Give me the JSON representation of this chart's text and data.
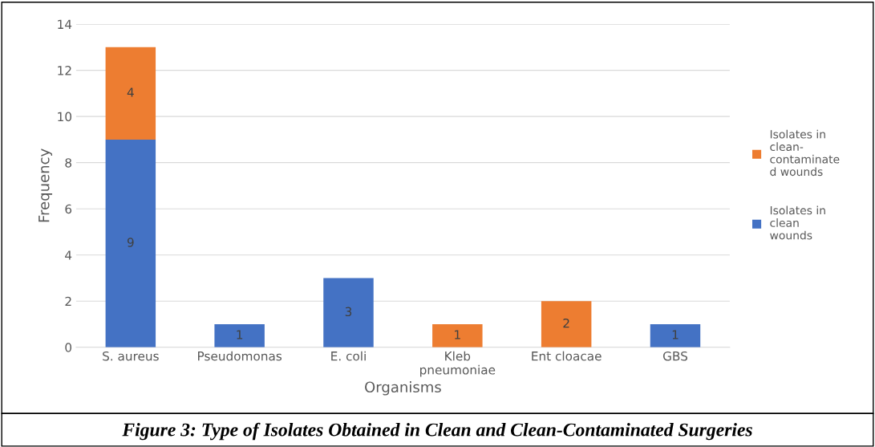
{
  "chart_data": {
    "type": "bar",
    "stacked": true,
    "categories": [
      "S. aureus",
      "Pseudomonas",
      "E. coli",
      "Kleb pneumoniae",
      "Ent cloacae",
      "GBS"
    ],
    "series": [
      {
        "name": "Isolates in clean wounds",
        "color": "#4472c4",
        "values": [
          9,
          1,
          3,
          null,
          null,
          1
        ]
      },
      {
        "name": "Isolates in clean-contaminated wounds",
        "color": "#ed7d31",
        "values": [
          4,
          null,
          null,
          1,
          2,
          null
        ]
      }
    ],
    "xlabel": "Organisms",
    "ylabel": "Frequency",
    "ylim": [
      0,
      14
    ],
    "yticks": [
      0,
      2,
      4,
      6,
      8,
      10,
      12,
      14
    ],
    "grid": "y",
    "legend": "right",
    "data_labels": true,
    "annotations": [
      "Figure 3: Type of Isolates Obtained in Clean and Clean-Contaminated Surgeries"
    ]
  }
}
